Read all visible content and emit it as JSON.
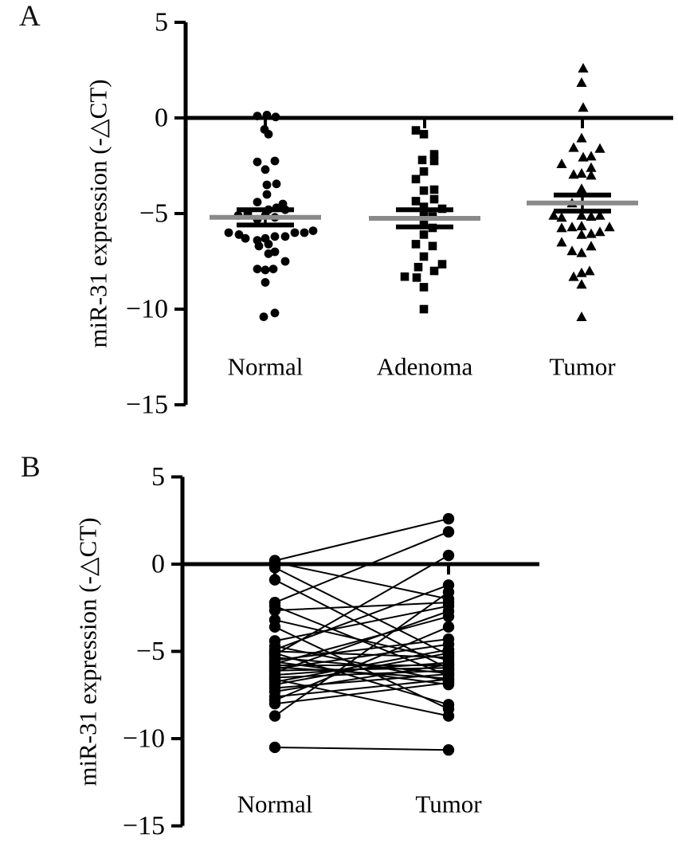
{
  "figure": {
    "background": "#ffffff",
    "panel_a_letter": "A",
    "panel_b_letter": "B"
  },
  "colors": {
    "marker": "#000000",
    "axis": "#000000",
    "error_bar": "#000000",
    "mean_line": "#8a8a8a",
    "pair_line": "#000000"
  },
  "chart_data": [
    {
      "panel": "A",
      "type": "scatter",
      "subtype": "column-scatter-with-mean-sem",
      "ylabel": "miR-31 expression (-△CT)",
      "ylim": [
        -15,
        5
      ],
      "yticks": [
        {
          "value": 5,
          "label": "5"
        },
        {
          "value": 0,
          "label": "0"
        },
        {
          "value": -5,
          "label": "−5"
        },
        {
          "value": -10,
          "label": "−10"
        },
        {
          "value": -15,
          "label": "−15"
        }
      ],
      "categories": [
        "Normal",
        "Adenoma",
        "Tumor"
      ],
      "groups": [
        {
          "name": "Normal",
          "marker": "circle",
          "mean": -5.2,
          "sem": 0.4,
          "points": [
            [
              -10,
              0.1
            ],
            [
              2,
              0.15
            ],
            [
              13,
              0.05
            ],
            [
              -1,
              -0.6
            ],
            [
              4,
              -0.85
            ],
            [
              -10,
              -2.3
            ],
            [
              12,
              -2.25
            ],
            [
              0,
              -2.7
            ],
            [
              14,
              -3.45
            ],
            [
              2,
              -3.5
            ],
            [
              2,
              -4.0
            ],
            [
              -10,
              -4.4
            ],
            [
              22,
              -4.5
            ],
            [
              4,
              -4.8
            ],
            [
              14,
              -4.7
            ],
            [
              25,
              -4.8
            ],
            [
              0,
              -5.1
            ],
            [
              12,
              -5.2
            ],
            [
              -10,
              -5.3
            ],
            [
              -22,
              -5.0
            ],
            [
              -34,
              -5.1
            ],
            [
              -46,
              -6.0
            ],
            [
              -33,
              -6.1
            ],
            [
              -25,
              -6.3
            ],
            [
              -10,
              -6.4
            ],
            [
              0,
              -6.3
            ],
            [
              12,
              -6.2
            ],
            [
              25,
              -6.2
            ],
            [
              37,
              -6.0
            ],
            [
              49,
              -6.0
            ],
            [
              60,
              -5.9
            ],
            [
              -8,
              -6.7
            ],
            [
              4,
              -6.6
            ],
            [
              4,
              -7.1
            ],
            [
              12,
              -7.0
            ],
            [
              25,
              -7.5
            ],
            [
              -10,
              -7.9
            ],
            [
              0,
              -7.95
            ],
            [
              10,
              -7.9
            ],
            [
              0,
              -8.6
            ],
            [
              -2,
              -10.4
            ],
            [
              12,
              -10.2
            ]
          ]
        },
        {
          "name": "Adenoma",
          "marker": "square",
          "mean": -5.25,
          "sem": 0.45,
          "points": [
            [
              -11,
              -0.65
            ],
            [
              -1,
              -0.85
            ],
            [
              12,
              -1.9
            ],
            [
              -3,
              -2.2
            ],
            [
              12,
              -2.25
            ],
            [
              -1,
              -2.8
            ],
            [
              -11,
              -3.2
            ],
            [
              12,
              -3.75
            ],
            [
              -1,
              -3.8
            ],
            [
              12,
              -4.25
            ],
            [
              -11,
              -4.35
            ],
            [
              -1,
              -4.65
            ],
            [
              22,
              -4.75
            ],
            [
              -1,
              -5.05
            ],
            [
              10,
              -5.15
            ],
            [
              -1,
              -5.6
            ],
            [
              10,
              -5.75
            ],
            [
              -1,
              -6.1
            ],
            [
              -11,
              -6.6
            ],
            [
              10,
              -6.7
            ],
            [
              -1,
              -7.25
            ],
            [
              22,
              -7.65
            ],
            [
              -8,
              -7.8
            ],
            [
              12,
              -8.0
            ],
            [
              -25,
              -8.3
            ],
            [
              -10,
              -8.35
            ],
            [
              -1,
              -8.85
            ],
            [
              -1,
              -10.0
            ]
          ]
        },
        {
          "name": "Tumor",
          "marker": "triangle",
          "mean": -4.45,
          "sem": 0.42,
          "points": [
            [
              1,
              2.6
            ],
            [
              -1,
              1.85
            ],
            [
              1,
              0.55
            ],
            [
              -1,
              -1.05
            ],
            [
              -11,
              -1.55
            ],
            [
              22,
              -1.6
            ],
            [
              1,
              -2.05
            ],
            [
              11,
              -2.0
            ],
            [
              -26,
              -2.4
            ],
            [
              11,
              -2.6
            ],
            [
              -11,
              -2.95
            ],
            [
              -1,
              -2.9
            ],
            [
              11,
              -3.0
            ],
            [
              -1,
              -3.7
            ],
            [
              -13,
              -4.45
            ],
            [
              -36,
              -5.1
            ],
            [
              -26,
              -5.2
            ],
            [
              -1,
              -5.1
            ],
            [
              11,
              -5.15
            ],
            [
              22,
              -5.1
            ],
            [
              -26,
              -5.75
            ],
            [
              -13,
              -5.7
            ],
            [
              -1,
              -5.65
            ],
            [
              22,
              -5.95
            ],
            [
              34,
              -5.7
            ],
            [
              -1,
              -6.1
            ],
            [
              11,
              -6.05
            ],
            [
              -26,
              -6.5
            ],
            [
              11,
              -6.7
            ],
            [
              -13,
              -6.95
            ],
            [
              -1,
              -7.05
            ],
            [
              -1,
              -8.1
            ],
            [
              9,
              -8.0
            ],
            [
              -11,
              -8.3
            ],
            [
              -1,
              -8.7
            ],
            [
              -1,
              -10.4
            ]
          ]
        }
      ]
    },
    {
      "panel": "B",
      "type": "line",
      "subtype": "paired-before-after",
      "ylabel": "miR-31 expression (-△CT)",
      "ylim": [
        -15,
        5
      ],
      "yticks": [
        {
          "value": 5,
          "label": "5"
        },
        {
          "value": 0,
          "label": "0"
        },
        {
          "value": -5,
          "label": "−5"
        },
        {
          "value": -10,
          "label": "−10"
        },
        {
          "value": -15,
          "label": "−15"
        }
      ],
      "categories": [
        "Normal",
        "Tumor"
      ],
      "marker": "circle",
      "pairs": [
        [
          0.2,
          2.6
        ],
        [
          0.1,
          -2.0
        ],
        [
          -0.2,
          -5.2
        ],
        [
          -0.9,
          -6.0
        ],
        [
          -2.2,
          1.85
        ],
        [
          -2.4,
          -6.4
        ],
        [
          -2.65,
          -2.2
        ],
        [
          -3.2,
          -5.5
        ],
        [
          -3.6,
          -8.3
        ],
        [
          -4.4,
          -2.4
        ],
        [
          -4.7,
          -6.7
        ],
        [
          -4.9,
          -1.2
        ],
        [
          -5.0,
          -5.35
        ],
        [
          -5.1,
          -8.05
        ],
        [
          -5.2,
          0.5
        ],
        [
          -5.35,
          -6.25
        ],
        [
          -5.5,
          -4.3
        ],
        [
          -5.6,
          -6.9
        ],
        [
          -5.7,
          -3.0
        ],
        [
          -5.8,
          -5.8
        ],
        [
          -5.9,
          -6.55
        ],
        [
          -6.0,
          -4.6
        ],
        [
          -6.1,
          -5.95
        ],
        [
          -6.2,
          -2.7
        ],
        [
          -6.35,
          -5.65
        ],
        [
          -6.5,
          -6.1
        ],
        [
          -6.6,
          -8.7
        ],
        [
          -6.75,
          -4.9
        ],
        [
          -6.9,
          -5.1
        ],
        [
          -7.1,
          -6.3
        ],
        [
          -7.3,
          -5.75
        ],
        [
          -7.6,
          -6.6
        ],
        [
          -7.8,
          -3.6
        ],
        [
          -8.0,
          -6.8
        ],
        [
          -8.7,
          -1.6
        ],
        [
          -10.5,
          -10.65
        ]
      ]
    }
  ]
}
